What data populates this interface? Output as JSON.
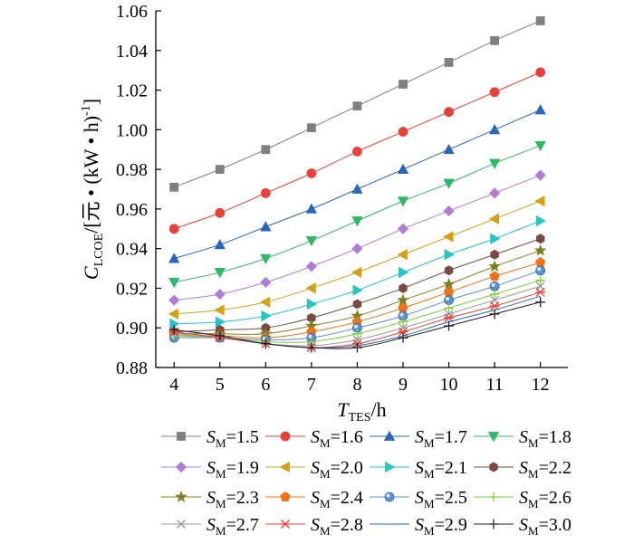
{
  "chart_data": {
    "type": "line",
    "x": [
      4,
      5,
      6,
      7,
      8,
      9,
      10,
      11,
      12
    ],
    "xlim": [
      3.6,
      12.6
    ],
    "ylim": [
      0.88,
      1.06
    ],
    "xticks": [
      "4",
      "5",
      "6",
      "7",
      "8",
      "9",
      "10",
      "11",
      "12"
    ],
    "yticks": [
      "0.88",
      "0.90",
      "0.92",
      "0.94",
      "0.96",
      "0.98",
      "1.00",
      "1.02",
      "1.04",
      "1.06"
    ],
    "xlabel": {
      "main": "T",
      "sub": "TES",
      "rest": "/h"
    },
    "ylabel": {
      "main": "C",
      "sub": "LCOE",
      "rest": "/[元 • (kW • h)",
      "sup": "-1",
      "close": "]"
    },
    "legend_position": "bottom",
    "grid": false,
    "series": [
      {
        "name": "1.5",
        "color": "#808080",
        "marker": "square",
        "values": [
          0.971,
          0.98,
          0.99,
          1.001,
          1.012,
          1.023,
          1.034,
          1.045,
          1.055
        ]
      },
      {
        "name": "1.6",
        "color": "#e8403a",
        "marker": "circle",
        "values": [
          0.95,
          0.958,
          0.968,
          0.978,
          0.989,
          0.999,
          1.009,
          1.019,
          1.029
        ]
      },
      {
        "name": "1.7",
        "color": "#2b66b8",
        "marker": "triangle-up",
        "values": [
          0.935,
          0.942,
          0.951,
          0.96,
          0.97,
          0.98,
          0.99,
          1.0,
          1.01
        ]
      },
      {
        "name": "1.8",
        "color": "#2fb86a",
        "marker": "triangle-down",
        "values": [
          0.923,
          0.928,
          0.935,
          0.944,
          0.954,
          0.964,
          0.973,
          0.983,
          0.992
        ]
      },
      {
        "name": "1.9",
        "color": "#b07dd6",
        "marker": "diamond",
        "values": [
          0.914,
          0.917,
          0.923,
          0.931,
          0.94,
          0.95,
          0.959,
          0.968,
          0.977
        ]
      },
      {
        "name": "2.0",
        "color": "#d4a017",
        "marker": "triangle-left",
        "values": [
          0.907,
          0.909,
          0.913,
          0.92,
          0.928,
          0.937,
          0.946,
          0.955,
          0.964
        ]
      },
      {
        "name": "2.1",
        "color": "#27c4c4",
        "marker": "triangle-right",
        "values": [
          0.902,
          0.903,
          0.906,
          0.912,
          0.919,
          0.928,
          0.937,
          0.945,
          0.954
        ]
      },
      {
        "name": "2.2",
        "color": "#7a4a42",
        "marker": "hexagon",
        "values": [
          0.898,
          0.899,
          0.9,
          0.905,
          0.912,
          0.92,
          0.929,
          0.937,
          0.945
        ]
      },
      {
        "name": "2.3",
        "color": "#7f7f20",
        "marker": "star",
        "values": [
          0.897,
          0.897,
          0.897,
          0.901,
          0.906,
          0.914,
          0.922,
          0.931,
          0.939
        ]
      },
      {
        "name": "2.4",
        "color": "#f07218",
        "marker": "pentagon",
        "values": [
          0.896,
          0.896,
          0.895,
          0.898,
          0.903,
          0.91,
          0.918,
          0.926,
          0.933
        ]
      },
      {
        "name": "2.5",
        "color": "#5b8fd0",
        "marker": "sphere",
        "values": [
          0.895,
          0.895,
          0.894,
          0.895,
          0.9,
          0.906,
          0.914,
          0.921,
          0.929
        ]
      },
      {
        "name": "2.6",
        "color": "#7fcf3f",
        "marker": "plus",
        "values": [
          0.896,
          0.895,
          0.893,
          0.893,
          0.897,
          0.903,
          0.91,
          0.917,
          0.924
        ]
      },
      {
        "name": "2.7",
        "color": "#9a9a9a",
        "marker": "x",
        "values": [
          0.897,
          0.895,
          0.892,
          0.891,
          0.894,
          0.9,
          0.907,
          0.914,
          0.921
        ]
      },
      {
        "name": "2.8",
        "color": "#e8403a",
        "marker": "asterisk",
        "values": [
          0.898,
          0.895,
          0.892,
          0.89,
          0.892,
          0.898,
          0.905,
          0.911,
          0.918
        ]
      },
      {
        "name": "2.9",
        "color": "#2b66b8",
        "marker": "none",
        "values": [
          0.899,
          0.896,
          0.892,
          0.89,
          0.891,
          0.896,
          0.903,
          0.909,
          0.916
        ]
      },
      {
        "name": "3.0",
        "color": "#222222",
        "marker": "plus",
        "values": [
          0.899,
          0.896,
          0.892,
          0.89,
          0.89,
          0.895,
          0.901,
          0.907,
          0.913
        ]
      }
    ],
    "legend_label_prefix": {
      "main": "S",
      "sub": "M",
      "eq": "="
    }
  }
}
